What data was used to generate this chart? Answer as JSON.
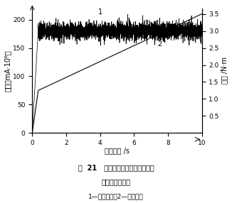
{
  "xlabel": "仿真时间 /s",
  "ylabel_left": "电流（mA·10⁶）",
  "ylabel_right": "转矩 /N·m",
  "xlim": [
    0,
    10
  ],
  "ylim_left": [
    0,
    220
  ],
  "ylim_right": [
    0,
    3.667
  ],
  "yticks_left": [
    0,
    50,
    100,
    150,
    200
  ],
  "yticks_right": [
    0.5,
    1.0,
    1.5,
    2.0,
    2.5,
    3.0,
    3.5
  ],
  "xticks": [
    0,
    2,
    4,
    6,
    8,
    10
  ],
  "curve1_label": "1",
  "curve2_label": "2",
  "fig_num": "21",
  "caption_line1": "图  21   刀盘转矩的仿真信号与比例",
  "caption_line2": "溢流阀调节信号",
  "caption_line3": "1—刀盘转矩；2—调速电流",
  "seed": 7,
  "noise_std": 0.13,
  "torque_mean": 3.0,
  "torque_rise_end": 0.35,
  "current_start": 0.0,
  "current_end": 3.5,
  "current_rise_end": 0.35,
  "current_at_rise": 1.25
}
